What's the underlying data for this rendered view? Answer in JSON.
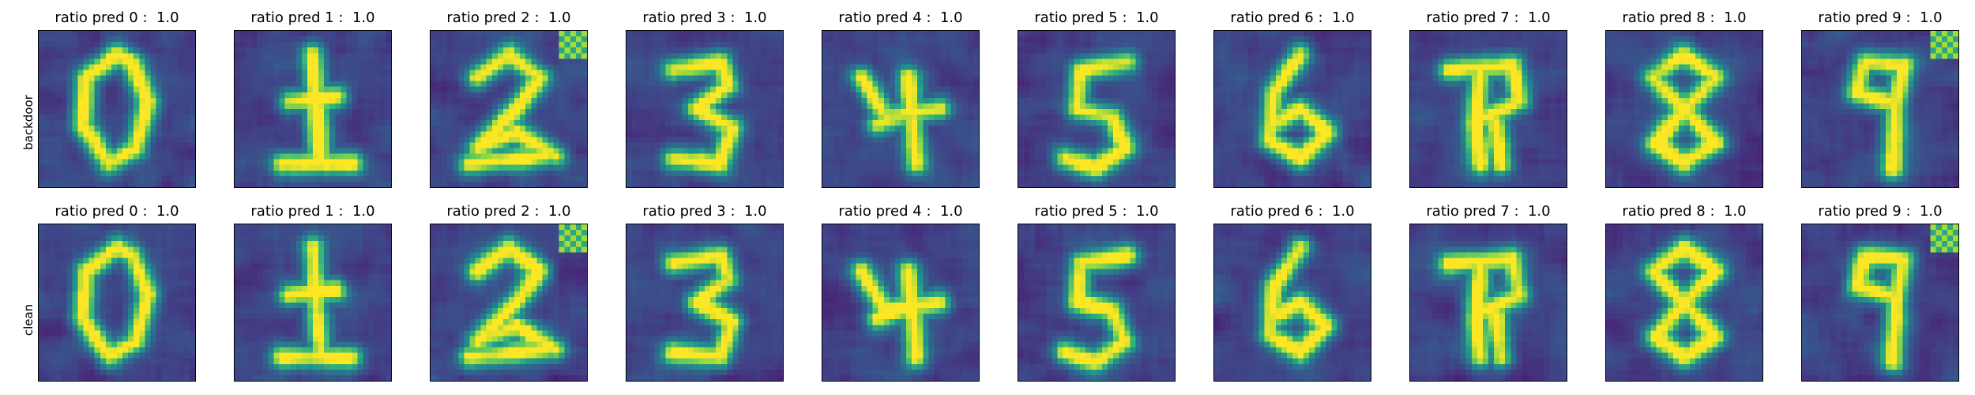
{
  "figure": {
    "rows": [
      {
        "label": "backdoor",
        "panels": [
          {
            "title": "ratio pred 0 :  1.0",
            "digit": 0
          },
          {
            "title": "ratio pred 1 :  1.0",
            "digit": 1
          },
          {
            "title": "ratio pred 2 :  1.0",
            "digit": 2
          },
          {
            "title": "ratio pred 3 :  1.0",
            "digit": 3
          },
          {
            "title": "ratio pred 4 :  1.0",
            "digit": 4
          },
          {
            "title": "ratio pred 5 :  1.0",
            "digit": 5
          },
          {
            "title": "ratio pred 6 :  1.0",
            "digit": 6
          },
          {
            "title": "ratio pred 7 :  1.0",
            "digit": 7
          },
          {
            "title": "ratio pred 8 :  1.0",
            "digit": 8
          },
          {
            "title": "ratio pred 9 :  1.0",
            "digit": 9
          }
        ]
      },
      {
        "label": "clean",
        "panels": [
          {
            "title": "ratio pred 0 :  1.0",
            "digit": 0
          },
          {
            "title": "ratio pred 1 :  1.0",
            "digit": 1
          },
          {
            "title": "ratio pred 2 :  1.0",
            "digit": 2
          },
          {
            "title": "ratio pred 3 :  1.0",
            "digit": 3
          },
          {
            "title": "ratio pred 4 :  1.0",
            "digit": 4
          },
          {
            "title": "ratio pred 5 :  1.0",
            "digit": 5
          },
          {
            "title": "ratio pred 6 :  1.0",
            "digit": 6
          },
          {
            "title": "ratio pred 7 :  1.0",
            "digit": 7
          },
          {
            "title": "ratio pred 8 :  1.0",
            "digit": 8
          },
          {
            "title": "ratio pred 9 :  1.0",
            "digit": 9
          }
        ]
      }
    ],
    "colormap": "viridis"
  }
}
